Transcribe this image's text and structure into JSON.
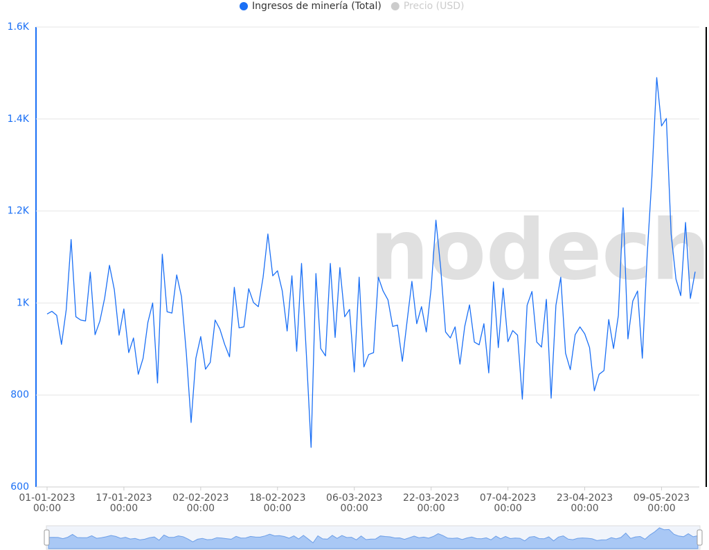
{
  "chart_data": {
    "type": "line",
    "watermark": "nodech",
    "x": [
      "01-01-2023",
      "02-01-2023",
      "03-01-2023",
      "04-01-2023",
      "05-01-2023",
      "06-01-2023",
      "07-01-2023",
      "08-01-2023",
      "09-01-2023",
      "10-01-2023",
      "11-01-2023",
      "12-01-2023",
      "13-01-2023",
      "14-01-2023",
      "15-01-2023",
      "16-01-2023",
      "17-01-2023",
      "18-01-2023",
      "19-01-2023",
      "20-01-2023",
      "21-01-2023",
      "22-01-2023",
      "23-01-2023",
      "24-01-2023",
      "25-01-2023",
      "26-01-2023",
      "27-01-2023",
      "28-01-2023",
      "29-01-2023",
      "30-01-2023",
      "31-01-2023",
      "01-02-2023",
      "02-02-2023",
      "03-02-2023",
      "04-02-2023",
      "05-02-2023",
      "06-02-2023",
      "07-02-2023",
      "08-02-2023",
      "09-02-2023",
      "10-02-2023",
      "11-02-2023",
      "12-02-2023",
      "13-02-2023",
      "14-02-2023",
      "15-02-2023",
      "16-02-2023",
      "17-02-2023",
      "18-02-2023",
      "19-02-2023",
      "20-02-2023",
      "21-02-2023",
      "22-02-2023",
      "23-02-2023",
      "24-02-2023",
      "25-02-2023",
      "26-02-2023",
      "27-02-2023",
      "28-02-2023",
      "01-03-2023",
      "02-03-2023",
      "03-03-2023",
      "04-03-2023",
      "05-03-2023",
      "06-03-2023",
      "07-03-2023",
      "08-03-2023",
      "09-03-2023",
      "10-03-2023",
      "11-03-2023",
      "12-03-2023",
      "13-03-2023",
      "14-03-2023",
      "15-03-2023",
      "16-03-2023",
      "17-03-2023",
      "18-03-2023",
      "19-03-2023",
      "20-03-2023",
      "21-03-2023",
      "22-03-2023",
      "23-03-2023",
      "24-03-2023",
      "25-03-2023",
      "26-03-2023",
      "27-03-2023",
      "28-03-2023",
      "29-03-2023",
      "30-03-2023",
      "31-03-2023",
      "01-04-2023",
      "02-04-2023",
      "03-04-2023",
      "04-04-2023",
      "05-04-2023",
      "06-04-2023",
      "07-04-2023",
      "08-04-2023",
      "09-04-2023",
      "10-04-2023",
      "11-04-2023",
      "12-04-2023",
      "13-04-2023",
      "14-04-2023",
      "15-04-2023",
      "16-04-2023",
      "17-04-2023",
      "18-04-2023",
      "19-04-2023",
      "20-04-2023",
      "21-04-2023",
      "22-04-2023",
      "23-04-2023",
      "24-04-2023",
      "25-04-2023",
      "26-04-2023",
      "27-04-2023",
      "28-04-2023",
      "29-04-2023",
      "30-04-2023",
      "01-05-2023",
      "02-05-2023",
      "03-05-2023",
      "04-05-2023",
      "05-05-2023",
      "06-05-2023",
      "07-05-2023",
      "08-05-2023",
      "09-05-2023",
      "10-05-2023",
      "11-05-2023",
      "12-05-2023",
      "13-05-2023",
      "14-05-2023",
      "15-05-2023",
      "16-05-2023"
    ],
    "series": [
      {
        "name": "Ingresos de minería (Total)",
        "color": "#1a6ff5",
        "values": [
          976,
          982,
          973,
          910,
          986,
          1138,
          970,
          963,
          961,
          1067,
          931,
          961,
          1011,
          1082,
          1029,
          930,
          987,
          892,
          924,
          845,
          880,
          958,
          1000,
          826,
          1106,
          981,
          978,
          1061,
          1014,
          891,
          740,
          880,
          927,
          856,
          871,
          963,
          943,
          910,
          883,
          1034,
          946,
          948,
          1031,
          1001,
          992,
          1056,
          1150,
          1059,
          1070,
          1026,
          939,
          1059,
          895,
          1086,
          891,
          686,
          1064,
          901,
          885,
          1086,
          925,
          1077,
          970,
          986,
          850,
          1056,
          861,
          888,
          892,
          1056,
          1026,
          1007,
          949,
          952,
          873,
          961,
          1047,
          955,
          992,
          937,
          1032,
          1180,
          1076,
          937,
          924,
          948,
          867,
          949,
          996,
          915,
          909,
          955,
          848,
          1046,
          903,
          1032,
          916,
          940,
          930,
          791,
          995,
          1025,
          915,
          904,
          1008,
          793,
          995,
          1056,
          891,
          855,
          931,
          948,
          933,
          903,
          809,
          845,
          853,
          964,
          901,
          973,
          1207,
          922,
          1004,
          1026,
          880,
          1104,
          1275,
          1490,
          1385,
          1401,
          1150,
          1052,
          1016,
          1175,
          1010,
          1068
        ]
      },
      {
        "name": "Precio (USD)",
        "color": "#cccccc",
        "hidden": true
      }
    ],
    "ylim": [
      600,
      1600
    ],
    "yticks": [
      600,
      800,
      {
        "value": 1000,
        "label": "1K"
      },
      {
        "value": 1200,
        "label": "1.2K"
      },
      {
        "value": 1400,
        "label": "1.4K"
      },
      {
        "value": 1600,
        "label": "1.6K"
      }
    ],
    "xticks": [
      {
        "value": "01-01-2023",
        "label": "01-01-2023 00:00"
      },
      {
        "value": "17-01-2023",
        "label": "17-01-2023 00:00"
      },
      {
        "value": "02-02-2023",
        "label": "02-02-2023 00:00"
      },
      {
        "value": "18-02-2023",
        "label": "18-02-2023 00:00"
      },
      {
        "value": "06-03-2023",
        "label": "06-03-2023 00:00"
      },
      {
        "value": "22-03-2023",
        "label": "22-03-2023 00:00"
      },
      {
        "value": "07-04-2023",
        "label": "07-04-2023 00:00"
      },
      {
        "value": "23-04-2023",
        "label": "23-04-2023 00:00"
      },
      {
        "value": "09-05-2023",
        "label": "09-05-2023 00:00"
      }
    ],
    "grid": true,
    "legend": "top"
  }
}
